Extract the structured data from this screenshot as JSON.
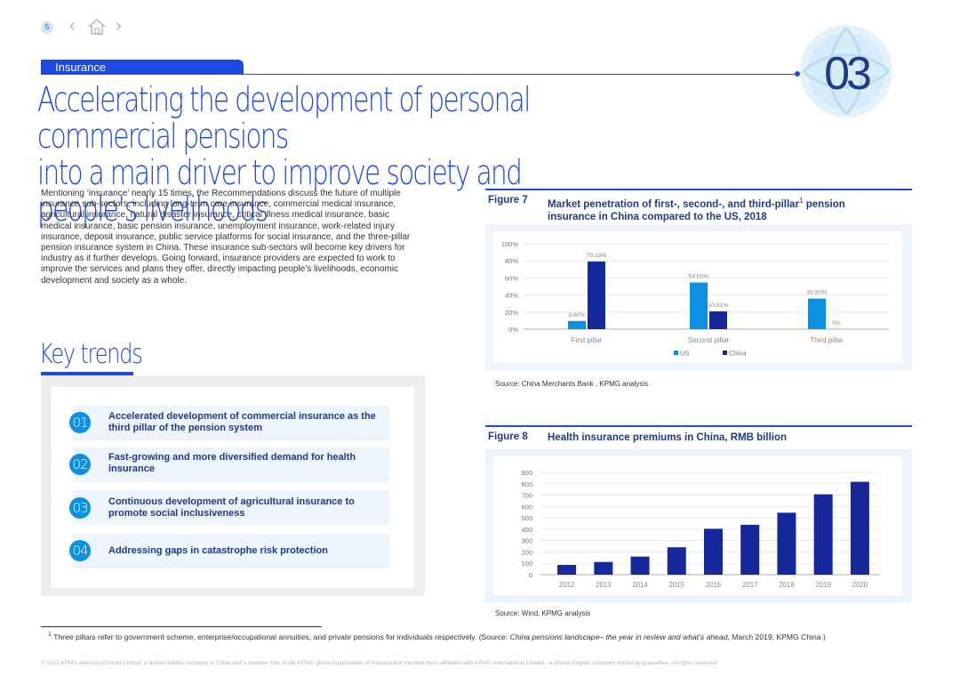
{
  "header": {
    "page_number": "5",
    "section_tab": "Insurance",
    "emblem_number": "03",
    "title_line1": "Accelerating the development of personal commercial pensions",
    "title_line2": "into a main driver to improve society and people’s livelihoods",
    "colors": {
      "accent": "#1e49e2",
      "dark_blue": "#1e3a8a",
      "light_blue": "#0b8fe3"
    }
  },
  "nav": {
    "prev_icon": "chevron-left-icon",
    "home_icon": "home-icon",
    "next_icon": "chevron-right-icon"
  },
  "intro": {
    "paragraph": "Mentioning ‘insurance’ nearly 15 times, the Recommendations discuss the future of multiple insurance sub-sectors, including long-term care insurance, commercial medical insurance, agricultural insurance, natural disaster insurance, critical illness medical insurance, basic medical insurance, basic pension insurance, unemployment insurance, work-related injury insurance, deposit insurance, public service platforms for social insurance, and the three-pillar pension insurance system in China. These insurance sub-sectors will become key drivers for industry as it further develops. Going forward, insurance providers are expected to work to improve the services and plans they offer, directly impacting people’s livelihoods, economic development and society as a whole."
  },
  "key_trends": {
    "heading": "Key trends",
    "items": [
      {
        "num": "01",
        "text": "Accelerated development of commercial insurance as the third pillar of the pension system"
      },
      {
        "num": "02",
        "text": "Fast-growing and more diversified demand for health insurance"
      },
      {
        "num": "03",
        "text": "Continuous development of agricultural insurance to promote social inclusiveness"
      },
      {
        "num": "04",
        "text": "Addressing gaps in catastrophe risk protection"
      }
    ]
  },
  "fig7": {
    "tag": "Figure 7",
    "title_a": "Market penetration of first-, second-, and third-pillar",
    "title_sup": "1",
    "title_b": "pension insurance in China compared to the US, 2018",
    "source": "Source: China Merchants Bank , KPMG analysis"
  },
  "fig8": {
    "tag": "Figure 8",
    "title": "Health insurance premiums in China, RMB billion",
    "source": "Source: Wind, KPMG analysis"
  },
  "chart_data": [
    {
      "type": "bar",
      "categories": [
        "First pillar",
        "Second pillar",
        "Third pillar"
      ],
      "y_ticks": [
        "0%",
        "20%",
        "40%",
        "60%",
        "80%",
        "100%"
      ],
      "ylim": [
        0,
        100
      ],
      "series": [
        {
          "name": "US",
          "values": [
            9.6,
            54.6,
            35.8
          ],
          "labels": [
            "9.60%",
            "54.60%",
            "35.80%"
          ],
          "color": "#0b8fe3"
        },
        {
          "name": "China",
          "values": [
            79.19,
            20.81,
            0
          ],
          "labels": [
            "79.19%",
            "20.81%",
            "0%"
          ],
          "color": "#14279b"
        }
      ],
      "legend": "bottom",
      "grid": true
    },
    {
      "type": "bar",
      "categories": [
        "2012",
        "2013",
        "2014",
        "2015",
        "2016",
        "2017",
        "2018",
        "2019",
        "2020"
      ],
      "values": [
        86,
        112,
        159,
        241,
        404,
        439,
        545,
        707,
        817
      ],
      "y_ticks": [
        "0",
        "100",
        "200",
        "300",
        "400",
        "500",
        "600",
        "700",
        "800",
        "900"
      ],
      "ylim": [
        0,
        900
      ],
      "color": "#14279b",
      "grid": true
    }
  ],
  "footnote": {
    "marker": "1",
    "text_a": "Three pillars refer to government scheme, enterprise/occupational annuities, and private pensions for individuals respectively. (Source: ",
    "text_em": "China pensions landscape– the year in review and what’s ahead,",
    "text_b": " March 2019, KPMG China )"
  },
  "copyright": "© 2021 KPMG Advisory (China) Limited, a limited liability company in China and a member firm of the KPMG global organisation of independent member firms affiliated with KPMG International Limited , a private English company limited by guarantee. All rights reserved."
}
